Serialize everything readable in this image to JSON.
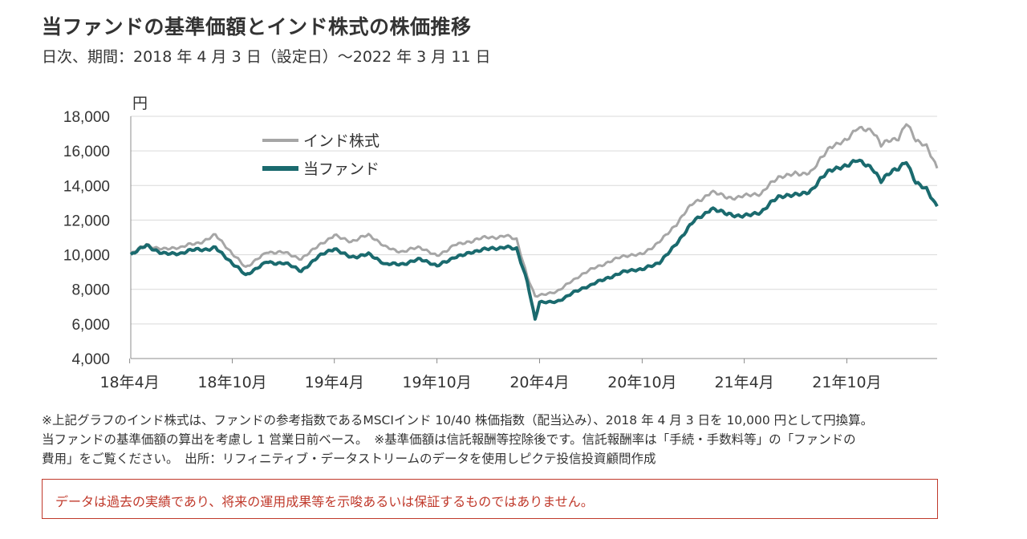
{
  "header": {
    "title": "当ファンドの基準価額とインド株式の株価推移",
    "subtitle": "日次、期間：2018 年 4 月 3 日（設定日）～2022 年 3 月 11 日"
  },
  "notes": [
    "※上記グラフのインド株式は、ファンドの参考指数であるMSCIインド 10/40 株価指数（配当込み）、2018 年 4 月 3 日を 10,000 円として円換算。",
    "当ファンドの基準価額の算出を考慮し 1 営業日前ベース。　※基準価額は信託報酬等控除後です。信託報酬率は「手続・手数料等」の「ファンドの",
    "費用」をご覧ください。　出所：リフィニティブ・データストリームのデータを使用しピクテ投信投資顧問作成"
  ],
  "disclaimer": "データは過去の実績であり、将来の運用成果等を示唆あるいは保証するものではありません。",
  "colors": {
    "fund": "#1a6a6e",
    "index": "#a6a6a6",
    "grid": "#d9d9d9",
    "axis": "#8c8c8c"
  },
  "chart_data": {
    "type": "line",
    "title": "当ファンドの基準価額とインド株式の株価推移",
    "ylabel": "円",
    "ylim": [
      4000,
      18000
    ],
    "yticks": [
      4000,
      6000,
      8000,
      10000,
      12000,
      14000,
      16000,
      18000
    ],
    "ytick_labels": [
      "4,000",
      "6,000",
      "8,000",
      "10,000",
      "12,000",
      "14,000",
      "16,000",
      "18,000"
    ],
    "xlim": [
      "2018-04-03",
      "2022-03-11"
    ],
    "xticks": [
      "2018-04",
      "2018-10",
      "2019-04",
      "2019-10",
      "2020-04",
      "2020-10",
      "2021-04",
      "2021-10"
    ],
    "xtick_labels": [
      "18年4月",
      "18年10月",
      "19年4月",
      "19年10月",
      "20年4月",
      "20年10月",
      "21年4月",
      "21年10月"
    ],
    "grid": true,
    "legend": "top-left",
    "x": [
      "2018-04-03",
      "2018-05-01",
      "2018-06-01",
      "2018-07-01",
      "2018-08-01",
      "2018-09-01",
      "2018-10-01",
      "2018-10-25",
      "2018-11-15",
      "2018-12-01",
      "2019-01-01",
      "2019-02-01",
      "2019-03-01",
      "2019-04-01",
      "2019-05-01",
      "2019-06-01",
      "2019-07-01",
      "2019-08-01",
      "2019-09-01",
      "2019-10-01",
      "2019-11-01",
      "2019-12-01",
      "2020-01-01",
      "2020-02-01",
      "2020-02-20",
      "2020-03-10",
      "2020-03-24",
      "2020-04-01",
      "2020-05-01",
      "2020-06-01",
      "2020-07-01",
      "2020-08-01",
      "2020-09-01",
      "2020-10-01",
      "2020-11-01",
      "2020-12-01",
      "2021-01-01",
      "2021-02-01",
      "2021-03-01",
      "2021-04-01",
      "2021-05-01",
      "2021-06-01",
      "2021-07-01",
      "2021-08-01",
      "2021-09-01",
      "2021-10-01",
      "2021-10-20",
      "2021-11-15",
      "2021-12-01",
      "2022-01-01",
      "2022-01-15",
      "2022-02-01",
      "2022-02-20",
      "2022-03-11"
    ],
    "series": [
      {
        "name": "インド株式",
        "values": [
          10000,
          10600,
          10300,
          10400,
          10700,
          11100,
          10000,
          9300,
          9800,
          10200,
          10100,
          9800,
          10400,
          11200,
          10800,
          11100,
          10400,
          10200,
          10400,
          9900,
          10600,
          10800,
          11000,
          11100,
          10900,
          8800,
          7600,
          7700,
          7900,
          8500,
          9100,
          9600,
          9900,
          10000,
          10800,
          11800,
          13000,
          13600,
          13300,
          13400,
          13500,
          14500,
          14700,
          14800,
          16300,
          16700,
          17300,
          17100,
          16300,
          16800,
          17700,
          16500,
          16200,
          15000
        ]
      },
      {
        "name": "当ファンド",
        "values": [
          10000,
          10500,
          10100,
          10100,
          10300,
          10400,
          9500,
          8800,
          9300,
          9600,
          9500,
          9100,
          9800,
          10400,
          9900,
          10000,
          9400,
          9500,
          9700,
          9300,
          9900,
          10200,
          10300,
          10500,
          10400,
          8500,
          6300,
          7300,
          7300,
          7800,
          8200,
          8700,
          9000,
          9100,
          9600,
          10700,
          11900,
          12700,
          12300,
          12300,
          12500,
          13300,
          13400,
          13800,
          14900,
          15100,
          15400,
          14900,
          14300,
          15000,
          15500,
          14100,
          13800,
          12800
        ]
      }
    ]
  }
}
